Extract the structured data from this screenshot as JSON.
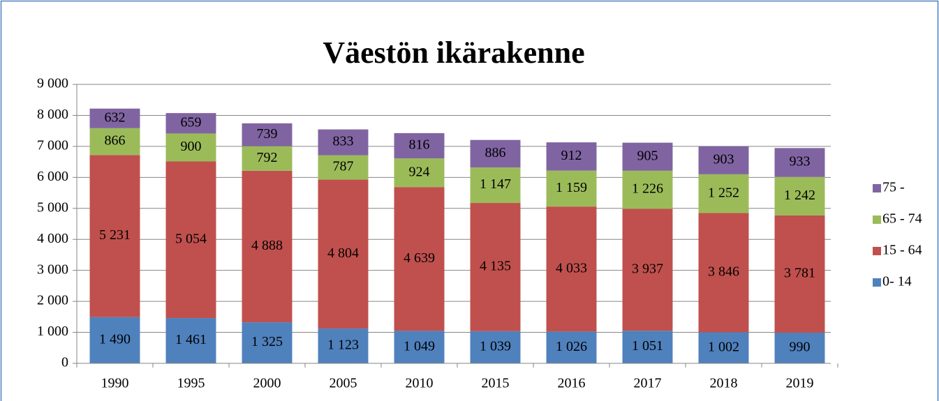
{
  "chart_data": {
    "type": "stacked_bar",
    "title": "Väestön ikärakenne",
    "categories": [
      "1990",
      "1995",
      "2000",
      "2005",
      "2010",
      "2015",
      "2016",
      "2017",
      "2018",
      "2019"
    ],
    "series": [
      {
        "name": "0- 14",
        "color": "#4f81bd",
        "values": [
          1490,
          1461,
          1325,
          1123,
          1049,
          1039,
          1026,
          1051,
          1002,
          990
        ],
        "value_labels": [
          "1 490",
          "1 461",
          "1 325",
          "1 123",
          "1 049",
          "1 039",
          "1 026",
          "1 051",
          "1 002",
          "990"
        ]
      },
      {
        "name": "15 - 64",
        "color": "#c0504d",
        "values": [
          5231,
          5054,
          4888,
          4804,
          4639,
          4135,
          4033,
          3937,
          3846,
          3781
        ],
        "value_labels": [
          "5 231",
          "5 054",
          "4 888",
          "4 804",
          "4 639",
          "4 135",
          "4 033",
          "3 937",
          "3 846",
          "3 781"
        ]
      },
      {
        "name": "65 - 74",
        "color": "#9bbb59",
        "values": [
          866,
          900,
          792,
          787,
          924,
          1147,
          1159,
          1226,
          1252,
          1242
        ],
        "value_labels": [
          "866",
          "900",
          "792",
          "787",
          "924",
          "1 147",
          "1 159",
          "1 226",
          "1 252",
          "1 242"
        ]
      },
      {
        "name": "75 -",
        "color": "#8064a2",
        "values": [
          632,
          659,
          739,
          833,
          816,
          886,
          912,
          905,
          903,
          933
        ],
        "value_labels": [
          "632",
          "659",
          "739",
          "833",
          "816",
          "886",
          "912",
          "905",
          "903",
          "933"
        ]
      }
    ],
    "ylim": [
      0,
      9000
    ],
    "yticks": [
      0,
      {
        "value": 1000,
        "label": "1 000"
      },
      {
        "value": 2000,
        "label": "2 000"
      },
      {
        "value": 3000,
        "label": "3 000"
      },
      {
        "value": 4000,
        "label": "4 000"
      },
      {
        "value": 5000,
        "label": "5 000"
      },
      {
        "value": 6000,
        "label": "6 000"
      },
      {
        "value": 7000,
        "label": "7 000"
      },
      {
        "value": 8000,
        "label": "8 000"
      },
      {
        "value": 9000,
        "label": "9 000"
      }
    ],
    "grid": true,
    "legend": "right"
  }
}
